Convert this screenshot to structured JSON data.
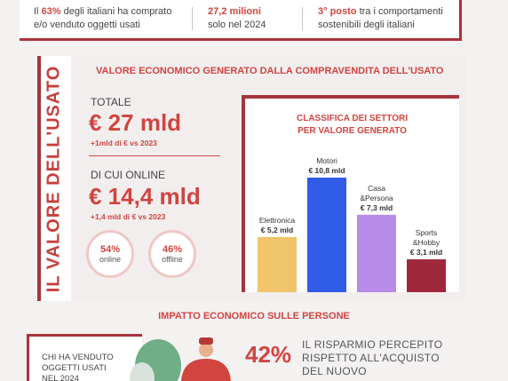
{
  "top_stats": [
    {
      "bold": "63%",
      "pre": "Il ",
      "post": " degli italiani ha comprato",
      "line2": "e/o venduto oggetti usati"
    },
    {
      "bold": "27,2 milioni",
      "pre": "",
      "post": "",
      "line2": "solo nel 2024"
    },
    {
      "bold": "3° posto",
      "pre": "",
      "post": " tra i comportamenti",
      "line2": "sostenibili degli italiani"
    }
  ],
  "section": {
    "vertical_title": "IL VALORE DELL'USATO",
    "heading": "VALORE ECONOMICO GENERATO DALLA COMPRAVENDITA DELL'USATO",
    "total_label": "TOTALE",
    "total_value": "€ 27 mld",
    "total_note": "+1mld di € vs 2023",
    "online_label": "DI CUI ONLINE",
    "online_value": "€ 14,4 mld",
    "online_note": "+1,4 mld di € vs 2023",
    "ring_online_pct": "54%",
    "ring_online_label": "online",
    "ring_offline_pct": "46%",
    "ring_offline_label": "offline"
  },
  "chart_data": {
    "type": "bar",
    "title": "CLASSIFICA DEI SETTORI\nPER VALORE GENERATO",
    "categories": [
      "Elettronica",
      "Motori",
      "Casa &Persona",
      "Sports &Hobby"
    ],
    "category_lines": [
      [
        "Elettronica"
      ],
      [
        "Motori"
      ],
      [
        "Casa",
        "&Persona"
      ],
      [
        "Sports",
        "&Hobby"
      ]
    ],
    "values": [
      5.2,
      10.8,
      7.3,
      3.1
    ],
    "value_labels": [
      "€ 5,2 mld",
      "€ 10,8 mld",
      "€ 7,3 mld",
      "€ 3,1 mld"
    ],
    "colors": [
      "#efc46a",
      "#2f5be6",
      "#b98be8",
      "#a0283b"
    ],
    "xlabel": "",
    "ylabel": "",
    "ylim": [
      0,
      10.8
    ],
    "grid": false
  },
  "bottom": {
    "heading": "IMPATTO ECONOMICO SULLE PERSONE",
    "card_text": "CHI HA VENDUTO\nOGGETTI USATI\nNEL 2024",
    "big_pct": "42%",
    "pct_text": "IL RISPARMIO PERCEPITO\nRISPETTO ALL'ACQUISTO\nDEL NUOVO"
  },
  "colors": {
    "accent": "#d2443f",
    "dark_red": "#a9343b",
    "background": "#f4f1f1"
  }
}
